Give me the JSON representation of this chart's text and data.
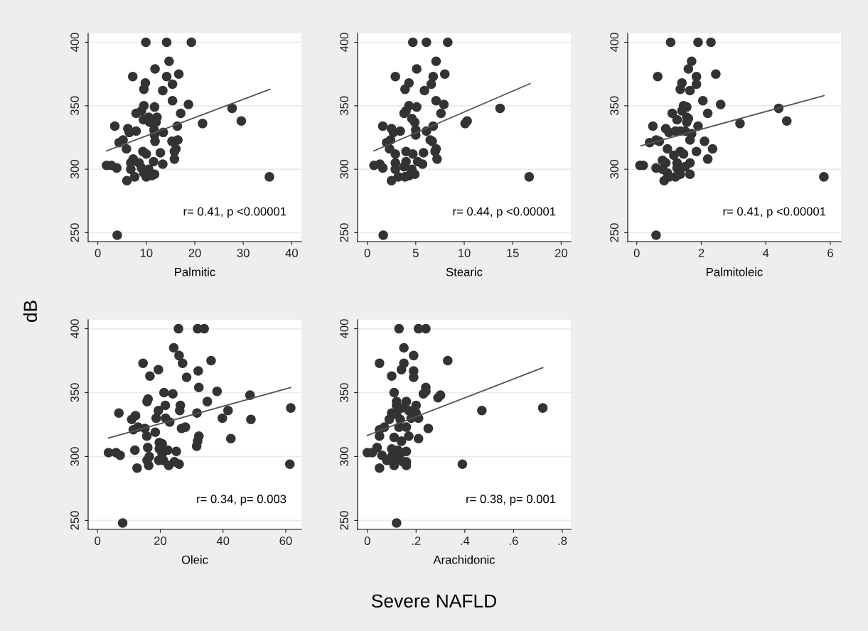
{
  "chart_data": [
    {
      "type": "scatter",
      "xlabel": "Palmitic",
      "ylabel": "dB",
      "xlim": [
        -2,
        42
      ],
      "xticks": [
        0,
        10,
        20,
        30,
        40
      ],
      "ylim": [
        243,
        407
      ],
      "yticks": [
        250,
        300,
        350,
        400
      ],
      "grid": "y",
      "legend": false,
      "annotations": [
        "r= 0.41, p <0.00001"
      ],
      "series": [
        {
          "marker": "circle",
          "color": "#333333",
          "x": [
            1.8,
            2.8,
            3.9,
            3.5,
            4.4,
            5.2,
            5.9,
            6.0,
            7.2,
            6.2,
            6.5,
            7.9,
            6.8,
            7.3,
            6.8,
            7.6,
            7.9,
            9.0,
            9.5,
            9.8,
            9.5,
            9.9,
            9.4,
            10.5,
            10.7,
            9.3,
            10,
            8.5,
            9,
            9.5,
            10,
            10.5,
            11.1,
            11.7,
            11.5,
            11.8,
            11.7,
            12.2,
            12,
            11.6,
            11.7,
            11.8,
            13.4,
            13.5,
            12.9,
            13.4,
            14.2,
            14.7,
            14.2,
            15.4,
            15.4,
            16.4,
            17.1,
            16.7,
            15.3,
            16.5,
            16.1,
            15.8,
            15.8,
            18.7,
            19.3,
            21.6,
            27.7,
            29.6,
            35.4,
            4
          ],
          "values": [
            303,
            303,
            301,
            334,
            321,
            323,
            316,
            291,
            373,
            332,
            329,
            330,
            305,
            308,
            300,
            294,
            344,
            346,
            350,
            368,
            363,
            400,
            339,
            341,
            337,
            314,
            312,
            305,
            301,
            297,
            294,
            300,
            295,
            296,
            306,
            379,
            349,
            341,
            337,
            331,
            327,
            322,
            362,
            329,
            313,
            304,
            400,
            385,
            373,
            367,
            354,
            334,
            344,
            375,
            322,
            323,
            316,
            314,
            308,
            351,
            400,
            336,
            348,
            338,
            294,
            248
          ]
        },
        {
          "type": "line",
          "color": "#555555",
          "x": [
            1.8,
            35.5
          ],
          "values": [
            314.5,
            363
          ]
        }
      ]
    },
    {
      "type": "scatter",
      "xlabel": "Stearic",
      "xlim": [
        -1,
        21
      ],
      "xticks": [
        0,
        5,
        10,
        15,
        20
      ],
      "ylim": [
        243,
        407
      ],
      "yticks": [
        250,
        300,
        350,
        400
      ],
      "grid": "y",
      "legend": false,
      "annotations": [
        "r= 0.44, p <0.00001"
      ],
      "series": [
        {
          "marker": "circle",
          "color": "#333333",
          "x": [
            0.7,
            1.3,
            1.6,
            1.6,
            2.0,
            2.4,
            2.3,
            2.5,
            2.9,
            2.5,
            2.7,
            3.4,
            2.9,
            2.9,
            2.9,
            3.2,
            3.8,
            4,
            4.3,
            4.3,
            3.9,
            4.7,
            4.6,
            4.9,
            5,
            5,
            4,
            4.7,
            4,
            3.8,
            3.9,
            4.3,
            4.6,
            4.9,
            5.2,
            5.7,
            5.8,
            5.1,
            5.1,
            5.9,
            6.1,
            6.1,
            6.6,
            6.8,
            7.1,
            7.1,
            6.8,
            6.5,
            6.7,
            7.1,
            7,
            7.2,
            7.9,
            7.6,
            8,
            8.3,
            10.1,
            10.3,
            13.7,
            16.7,
            1.65
          ],
          "values": [
            303,
            304,
            301,
            334,
            321,
            323,
            316,
            291,
            373,
            332,
            329,
            330,
            312,
            305,
            300,
            294,
            344,
            346,
            350,
            368,
            363,
            400,
            340,
            337,
            331,
            327,
            314,
            312,
            306,
            302,
            294,
            295,
            300,
            296,
            306,
            304,
            313,
            379,
            349,
            362,
            400,
            330,
            367,
            373,
            385,
            354,
            334,
            323,
            322,
            316,
            314,
            308,
            351,
            344,
            375,
            400,
            336,
            338,
            348,
            294,
            248
          ]
        },
        {
          "type": "line",
          "color": "#555555",
          "x": [
            0.7,
            16.8
          ],
          "values": [
            314.5,
            367.5
          ]
        }
      ]
    },
    {
      "type": "scatter",
      "xlabel": "Palmitoleic",
      "xlim": [
        -0.28,
        6.33
      ],
      "xticks": [
        0,
        2,
        4,
        6
      ],
      "ylim": [
        243,
        407
      ],
      "yticks": [
        250,
        300,
        350,
        400
      ],
      "grid": "y",
      "legend": false,
      "annotations": [
        "r= 0.41, p <0.00001"
      ],
      "series": [
        {
          "marker": "circle",
          "color": "#333333",
          "x": [
            0.1,
            0.2,
            0.4,
            0.5,
            0.6,
            0.7,
            0.6,
            0.65,
            0.8,
            0.85,
            0.9,
            1.0,
            0.95,
            0.8,
            0.9,
            0.95,
            1.0,
            1.05,
            1.1,
            1.2,
            1.2,
            1.15,
            1.25,
            1.25,
            1.25,
            1.35,
            1.35,
            1.35,
            1.35,
            1.4,
            1.4,
            1.45,
            1.45,
            1.5,
            1.5,
            1.55,
            1.55,
            1.55,
            1.6,
            1.6,
            1.65,
            1.7,
            1.65,
            1.65,
            1.65,
            1.7,
            1.85,
            1.85,
            1.85,
            1.9,
            1.9,
            2.05,
            2.2,
            2.1,
            2.2,
            2.35,
            2.3,
            2.45,
            2.6,
            3.2,
            4.4,
            4.65,
            5.8,
            0.6
          ],
          "values": [
            303,
            303,
            321,
            334,
            323,
            322,
            301,
            373,
            300,
            291,
            332,
            329,
            316,
            307,
            305,
            297,
            294,
            400,
            344,
            330,
            294,
            311,
            339,
            305,
            301,
            363,
            330,
            296,
            314,
            346,
            368,
            350,
            312,
            330,
            302,
            341,
            337,
            349,
            379,
            340,
            362,
            328,
            323,
            305,
            296,
            385,
            373,
            367,
            314,
            334,
            400,
            354,
            344,
            322,
            308,
            316,
            400,
            375,
            351,
            336,
            348,
            338,
            294,
            248
          ]
        },
        {
          "type": "line",
          "color": "#555555",
          "x": [
            0.13,
            5.8
          ],
          "values": [
            318.5,
            358
          ]
        }
      ]
    },
    {
      "type": "scatter",
      "xlabel": "Oleic",
      "xlim": [
        -3,
        65
      ],
      "xticks": [
        0,
        20,
        40,
        60
      ],
      "ylim": [
        243,
        407
      ],
      "yticks": [
        250,
        300,
        350,
        400
      ],
      "grid": "y",
      "legend": false,
      "annotations": [
        "r= 0.34, p= 0.003"
      ],
      "series": [
        {
          "marker": "circle",
          "color": "#333333",
          "x": [
            3.5,
            5.9,
            7.2,
            6.8,
            11.4,
            12.9,
            10.9,
            12.1,
            11.9,
            12.6,
            14.5,
            15.1,
            15.7,
            16,
            16.1,
            15.8,
            16.7,
            16.3,
            16.5,
            15.8,
            18.7,
            18.4,
            19.4,
            19.4,
            21.2,
            21.6,
            21.7,
            23,
            19.7,
            20.6,
            19.7,
            19.5,
            21,
            20.6,
            22.4,
            22.7,
            24,
            24.3,
            24.5,
            25.1,
            25.8,
            26,
            26,
            26.4,
            26.2,
            27.1,
            26.8,
            28,
            28.4,
            31.9,
            34,
            32.1,
            32.3,
            31.7,
            32.3,
            31.9,
            31.6,
            35,
            36.2,
            38.1,
            39.8,
            41.6,
            42.5,
            48.6,
            48.9,
            61.6,
            61.3,
            8
          ],
          "values": [
            303,
            303,
            301,
            334,
            321,
            323,
            329,
            332,
            305,
            291,
            373,
            322,
            316,
            307,
            345,
            343,
            363,
            293,
            300,
            297,
            330,
            319,
            368,
            336,
            350,
            340,
            330,
            327,
            311,
            310,
            306,
            297,
            297,
            302,
            305,
            293,
            349,
            385,
            296,
            304,
            400,
            379,
            294,
            340,
            336,
            373,
            322,
            323,
            362,
            400,
            400,
            367,
            354,
            334,
            316,
            312,
            308,
            343,
            375,
            351,
            330,
            336,
            314,
            348,
            329,
            338,
            294,
            248
          ]
        },
        {
          "type": "line",
          "color": "#555555",
          "x": [
            3.5,
            61.6
          ],
          "values": [
            314.5,
            354
          ]
        }
      ]
    },
    {
      "type": "scatter",
      "xlabel": "Arachidonic",
      "xlim": [
        -0.04,
        0.835
      ],
      "xticks": [
        {
          "value": 0,
          "label": "0"
        },
        {
          "value": 0.2,
          "label": ".2"
        },
        {
          "value": 0.4,
          "label": ".4"
        },
        {
          "value": 0.6,
          "label": ".6"
        },
        {
          "value": 0.8,
          "label": ".8"
        }
      ],
      "ylim": [
        243,
        407
      ],
      "yticks": [
        250,
        300,
        350,
        400
      ],
      "grid": "y",
      "legend": false,
      "annotations": [
        "r= 0.38, p= 0.001",
        "Severe NAFLD"
      ],
      "series": [
        {
          "marker": "circle",
          "color": "#333333",
          "x": [
            0,
            0.02,
            0.04,
            0.05,
            0.06,
            0.05,
            0.05,
            0.07,
            0.05,
            0.08,
            0.09,
            0.1,
            0.1,
            0.11,
            0.11,
            0.1,
            0.1,
            0.11,
            0.12,
            0.12,
            0.12,
            0.13,
            0.125,
            0.13,
            0.125,
            0.14,
            0.14,
            0.135,
            0.14,
            0.14,
            0.145,
            0.15,
            0.15,
            0.16,
            0.16,
            0.16,
            0.16,
            0.16,
            0.17,
            0.17,
            0.18,
            0.19,
            0.19,
            0.19,
            0.2,
            0.2,
            0.21,
            0.21,
            0.21,
            0.24,
            0.23,
            0.24,
            0.24,
            0.25,
            0.29,
            0.3,
            0.33,
            0.39,
            0.47,
            0.72,
            0.12
          ],
          "values": [
            303,
            303,
            307,
            291,
            301,
            321,
            316,
            323,
            373,
            297,
            329,
            334,
            363,
            350,
            315,
            306,
            300,
            293,
            343,
            340,
            333,
            323,
            305,
            400,
            298,
            368,
            338,
            329,
            312,
            303,
            296,
            385,
            373,
            343,
            323,
            304,
            296,
            293,
            336,
            316,
            330,
            379,
            367,
            362,
            340,
            334,
            330,
            314,
            400,
            400,
            349,
            354,
            351,
            322,
            346,
            348,
            375,
            294,
            336,
            338,
            248
          ]
        },
        {
          "type": "line",
          "color": "#555555",
          "x": [
            0,
            0.72
          ],
          "values": [
            316.5,
            369.5
          ]
        }
      ]
    }
  ]
}
